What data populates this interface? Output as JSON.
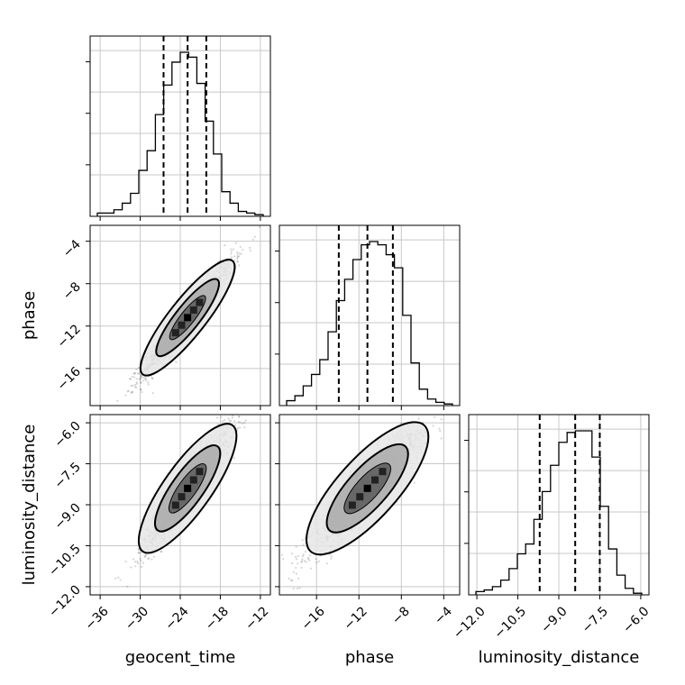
{
  "chart_data": {
    "type": "corner",
    "parameters": [
      {
        "name": "geocent_time",
        "label": "geocent_time",
        "range": [
          -37.5,
          -10.5
        ],
        "ticks": [
          -36,
          -30,
          -24,
          -18,
          -12
        ],
        "tick_labels": [
          "−36",
          "−30",
          "−24",
          "−18",
          "−12"
        ],
        "quantiles": [
          -26.5,
          -22.9,
          -20.1
        ],
        "histogram": [
          0.02,
          0.02,
          0.04,
          0.08,
          0.14,
          0.28,
          0.4,
          0.62,
          0.8,
          0.94,
          1.0,
          0.97,
          0.81,
          0.58,
          0.38,
          0.15,
          0.08,
          0.03,
          0.02,
          0.01
        ]
      },
      {
        "name": "phase",
        "label": "phase",
        "range": [
          -19.5,
          -2.5
        ],
        "ticks": [
          -16,
          -12,
          -8,
          -4
        ],
        "tick_labels": [
          "−16",
          "−12",
          "−8",
          "−4"
        ],
        "quantiles": [
          -13.9,
          -11.2,
          -8.8
        ],
        "histogram": [
          0.03,
          0.06,
          0.12,
          0.19,
          0.28,
          0.45,
          0.64,
          0.77,
          0.89,
          0.98,
          1.0,
          0.98,
          0.92,
          0.84,
          0.55,
          0.26,
          0.1,
          0.04,
          0.02,
          0.01
        ]
      },
      {
        "name": "luminosity_distance",
        "label": "luminosity_distance",
        "range": [
          -12.3,
          -5.7
        ],
        "ticks": [
          -12.0,
          -10.5,
          -9.0,
          -7.5,
          -6.0
        ],
        "tick_labels": [
          "−12.0",
          "−10.5",
          "−9.0",
          "−7.5",
          "−6.0"
        ],
        "quantiles": [
          -9.7,
          -8.4,
          -7.5
        ],
        "histogram": [
          0.02,
          0.03,
          0.05,
          0.09,
          0.16,
          0.25,
          0.31,
          0.46,
          0.63,
          0.79,
          0.93,
          0.99,
          1.0,
          1.0,
          0.84,
          0.54,
          0.28,
          0.12,
          0.04,
          0.01
        ]
      }
    ],
    "correlations": [
      {
        "x": "geocent_time",
        "y": "phase",
        "rho": 0.96
      },
      {
        "x": "geocent_time",
        "y": "luminosity_distance",
        "rho": 0.94
      },
      {
        "x": "phase",
        "y": "luminosity_distance",
        "rho": 0.92
      }
    ],
    "grid": true,
    "legend": "none"
  }
}
